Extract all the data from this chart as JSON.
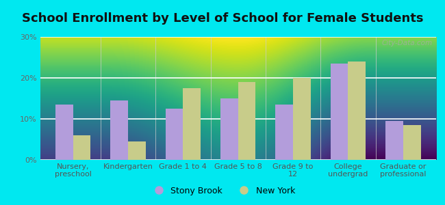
{
  "title": "School Enrollment by Level of School for Female Students",
  "categories": [
    "Nursery,\npreschool",
    "Kindergarten",
    "Grade 1 to 4",
    "Grade 5 to 8",
    "Grade 9 to\n12",
    "College\nundergrad",
    "Graduate or\nprofessional"
  ],
  "stony_brook": [
    13.5,
    14.5,
    12.5,
    15.0,
    13.5,
    23.5,
    9.5
  ],
  "new_york": [
    6.0,
    4.5,
    17.5,
    19.0,
    20.0,
    24.0,
    8.5
  ],
  "stony_brook_color": "#b39ddb",
  "new_york_color": "#c8cc8a",
  "background_outer": "#00e8f0",
  "background_inner": "#f2f5ee",
  "ylim": [
    0,
    30
  ],
  "yticks": [
    0,
    10,
    20,
    30
  ],
  "ytick_labels": [
    "0%",
    "10%",
    "20%",
    "30%"
  ],
  "legend_labels": [
    "Stony Brook",
    "New York"
  ],
  "title_fontsize": 13,
  "tick_fontsize": 8,
  "legend_fontsize": 9,
  "bar_width": 0.32,
  "watermark": "City-Data.com"
}
